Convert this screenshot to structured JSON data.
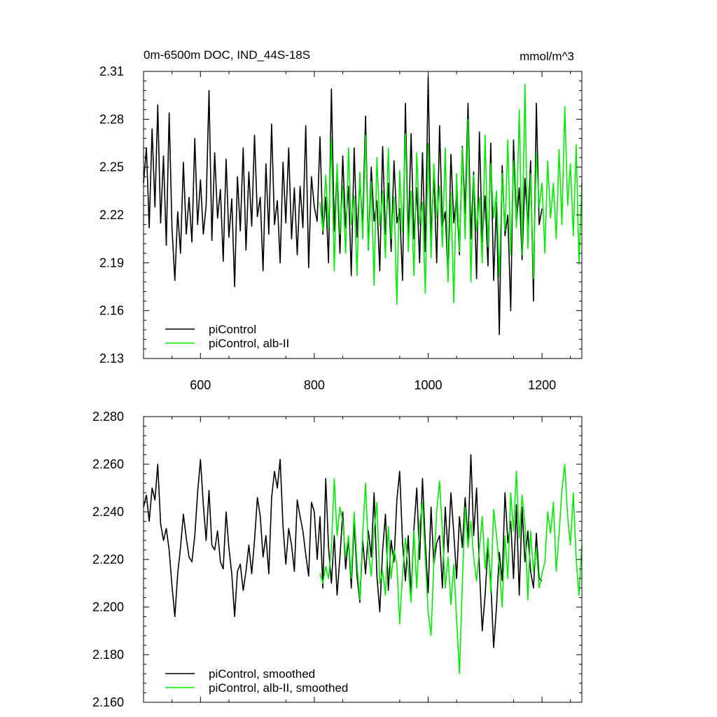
{
  "chart_data": [
    {
      "type": "line",
      "title": "0m-6500m DOC, IND_44S-18S",
      "units": "mmol/m^3",
      "xlim": [
        500,
        1270
      ],
      "ylim": [
        2.13,
        2.31
      ],
      "x_ticks": [
        600,
        800,
        1000,
        1200
      ],
      "x_tick_labels": [
        "600",
        "800",
        "1000",
        "1200"
      ],
      "y_ticks": [
        2.13,
        2.16,
        2.19,
        2.22,
        2.25,
        2.28,
        2.31
      ],
      "y_tick_labels": [
        "2.13",
        "2.16",
        "2.19",
        "2.22",
        "2.25",
        "2.28",
        "2.31"
      ],
      "legend_position": "bottom-left",
      "series": [
        {
          "name": "piControl",
          "color": "#000000",
          "x": [
            500,
            505,
            510,
            515,
            520,
            525,
            530,
            535,
            540,
            545,
            550,
            555,
            560,
            565,
            570,
            575,
            580,
            585,
            590,
            595,
            600,
            605,
            610,
            615,
            620,
            625,
            630,
            635,
            640,
            645,
            650,
            655,
            660,
            665,
            670,
            675,
            680,
            685,
            690,
            695,
            700,
            705,
            710,
            715,
            720,
            725,
            730,
            735,
            740,
            745,
            750,
            755,
            760,
            765,
            770,
            775,
            780,
            785,
            790,
            795,
            800,
            805,
            810,
            815,
            820,
            825,
            830,
            835,
            840,
            845,
            850,
            855,
            860,
            865,
            870,
            875,
            880,
            885,
            890,
            895,
            900,
            905,
            910,
            915,
            920,
            925,
            930,
            935,
            940,
            945,
            950,
            955,
            960,
            965,
            970,
            975,
            980,
            985,
            990,
            995,
            1000,
            1005,
            1010,
            1015,
            1020,
            1025,
            1030,
            1035,
            1040,
            1045,
            1050,
            1055,
            1060,
            1065,
            1070,
            1075,
            1080,
            1085,
            1090,
            1095,
            1100,
            1105,
            1110,
            1115,
            1120,
            1125,
            1130,
            1135,
            1140,
            1145,
            1150,
            1155,
            1160,
            1165,
            1170,
            1175,
            1180,
            1185,
            1190,
            1195,
            1200
          ],
          "y": [
            2.24,
            2.262,
            2.212,
            2.274,
            2.225,
            2.289,
            2.215,
            2.257,
            2.201,
            2.284,
            2.212,
            2.179,
            2.222,
            2.196,
            2.253,
            2.208,
            2.231,
            2.203,
            2.268,
            2.214,
            2.242,
            2.208,
            2.226,
            2.298,
            2.204,
            2.259,
            2.218,
            2.236,
            2.191,
            2.255,
            2.206,
            2.23,
            2.175,
            2.244,
            2.21,
            2.262,
            2.198,
            2.247,
            2.213,
            2.27,
            2.219,
            2.231,
            2.185,
            2.252,
            2.208,
            2.277,
            2.214,
            2.229,
            2.19,
            2.253,
            2.215,
            2.262,
            2.205,
            2.237,
            2.195,
            2.238,
            2.212,
            2.276,
            2.187,
            2.244,
            2.225,
            2.216,
            2.269,
            2.208,
            2.231,
            2.19,
            2.299,
            2.21,
            2.248,
            2.196,
            2.257,
            2.212,
            2.238,
            2.182,
            2.262,
            2.206,
            2.242,
            2.214,
            2.282,
            2.198,
            2.25,
            2.216,
            2.229,
            2.185,
            2.263,
            2.208,
            2.24,
            2.197,
            2.254,
            2.215,
            2.224,
            2.179,
            2.29,
            2.202,
            2.271,
            2.205,
            2.237,
            2.19,
            2.259,
            2.197,
            2.307,
            2.205,
            2.245,
            2.19,
            2.276,
            2.213,
            2.222,
            2.181,
            2.258,
            2.215,
            2.233,
            2.195,
            2.263,
            2.221,
            2.29,
            2.205,
            2.247,
            2.18,
            2.272,
            2.203,
            2.232,
            2.188,
            2.265,
            2.179,
            2.228,
            2.145,
            2.251,
            2.207,
            2.22,
            2.16,
            2.267,
            2.215,
            2.237,
            2.192,
            2.243,
            2.214,
            2.254,
            2.166,
            2.29,
            2.214,
            2.224
          ]
        },
        {
          "name": "piControl, alb-II",
          "color": "#00ee00",
          "x": [
            810,
            815,
            820,
            825,
            830,
            835,
            840,
            845,
            850,
            855,
            860,
            865,
            870,
            875,
            880,
            885,
            890,
            895,
            900,
            905,
            910,
            915,
            920,
            925,
            930,
            935,
            940,
            945,
            950,
            955,
            960,
            965,
            970,
            975,
            980,
            985,
            990,
            995,
            1000,
            1005,
            1010,
            1015,
            1020,
            1025,
            1030,
            1035,
            1040,
            1045,
            1050,
            1055,
            1060,
            1065,
            1070,
            1075,
            1080,
            1085,
            1090,
            1095,
            1100,
            1105,
            1110,
            1115,
            1120,
            1125,
            1130,
            1135,
            1140,
            1145,
            1150,
            1155,
            1160,
            1165,
            1170,
            1175,
            1180,
            1185,
            1190,
            1195,
            1200,
            1205,
            1210,
            1215,
            1220,
            1225,
            1230,
            1235,
            1240,
            1245,
            1250,
            1255,
            1260,
            1265,
            1270
          ],
          "y": [
            2.228,
            2.21,
            2.245,
            2.212,
            2.268,
            2.185,
            2.252,
            2.208,
            2.238,
            2.196,
            2.262,
            2.214,
            2.232,
            2.182,
            2.247,
            2.205,
            2.27,
            2.198,
            2.241,
            2.176,
            2.256,
            2.213,
            2.235,
            2.193,
            2.262,
            2.205,
            2.231,
            2.164,
            2.248,
            2.209,
            2.271,
            2.197,
            2.235,
            2.182,
            2.259,
            2.214,
            2.228,
            2.171,
            2.265,
            2.193,
            2.252,
            2.218,
            2.238,
            2.2,
            2.262,
            2.178,
            2.234,
            2.165,
            2.246,
            2.197,
            2.262,
            2.205,
            2.28,
            2.178,
            2.245,
            2.21,
            2.231,
            2.19,
            2.27,
            2.2,
            2.252,
            2.218,
            2.235,
            2.181,
            2.246,
            2.21,
            2.267,
            2.195,
            2.254,
            2.212,
            2.286,
            2.195,
            2.302,
            2.199,
            2.246,
            2.18,
            2.259,
            2.225,
            2.24,
            2.196,
            2.254,
            2.218,
            2.24,
            2.205,
            2.261,
            2.214,
            2.288,
            2.226,
            2.252,
            2.207,
            2.264,
            2.189,
            2.24
          ]
        }
      ]
    },
    {
      "type": "line",
      "xlim": [
        500,
        1270
      ],
      "ylim": [
        2.16,
        2.28
      ],
      "x_ticks": [
        600,
        800,
        1000,
        1200
      ],
      "y_ticks": [
        2.16,
        2.18,
        2.2,
        2.22,
        2.24,
        2.26,
        2.28
      ],
      "y_tick_labels": [
        "2.160",
        "2.180",
        "2.200",
        "2.220",
        "2.240",
        "2.260",
        "2.280"
      ],
      "legend_position": "bottom-left",
      "series": [
        {
          "name": "piControl, smoothed",
          "color": "#000000",
          "x": [
            500,
            505,
            510,
            515,
            520,
            525,
            530,
            535,
            540,
            545,
            550,
            555,
            560,
            565,
            570,
            575,
            580,
            585,
            590,
            595,
            600,
            605,
            610,
            615,
            620,
            625,
            630,
            635,
            640,
            645,
            650,
            655,
            660,
            665,
            670,
            675,
            680,
            685,
            690,
            695,
            700,
            705,
            710,
            715,
            720,
            725,
            730,
            735,
            740,
            745,
            750,
            755,
            760,
            765,
            770,
            775,
            780,
            785,
            790,
            795,
            800,
            805,
            810,
            815,
            820,
            825,
            830,
            835,
            840,
            845,
            850,
            855,
            860,
            865,
            870,
            875,
            880,
            885,
            890,
            895,
            900,
            905,
            910,
            915,
            920,
            925,
            930,
            935,
            940,
            945,
            950,
            955,
            960,
            965,
            970,
            975,
            980,
            985,
            990,
            995,
            1000,
            1005,
            1010,
            1015,
            1020,
            1025,
            1030,
            1035,
            1040,
            1045,
            1050,
            1055,
            1060,
            1065,
            1070,
            1075,
            1080,
            1085,
            1090,
            1095,
            1100,
            1105,
            1110,
            1115,
            1120,
            1125,
            1130,
            1135,
            1140,
            1145,
            1150,
            1155,
            1160,
            1165,
            1170,
            1175,
            1180,
            1185,
            1190,
            1195,
            1200
          ],
          "y": [
            2.242,
            2.247,
            2.236,
            2.25,
            2.245,
            2.26,
            2.235,
            2.228,
            2.233,
            2.224,
            2.209,
            2.196,
            2.214,
            2.225,
            2.239,
            2.229,
            2.221,
            2.219,
            2.23,
            2.248,
            2.262,
            2.243,
            2.228,
            2.249,
            2.226,
            2.224,
            2.232,
            2.219,
            2.216,
            2.24,
            2.225,
            2.214,
            2.196,
            2.215,
            2.218,
            2.207,
            2.215,
            2.226,
            2.214,
            2.228,
            2.246,
            2.238,
            2.221,
            2.23,
            2.214,
            2.246,
            2.257,
            2.25,
            2.262,
            2.234,
            2.218,
            2.233,
            2.226,
            2.215,
            2.245,
            2.238,
            2.232,
            2.222,
            2.213,
            2.244,
            2.24,
            2.22,
            2.238,
            2.208,
            2.254,
            2.225,
            2.21,
            2.23,
            2.205,
            2.221,
            2.24,
            2.216,
            2.229,
            2.208,
            2.236,
            2.213,
            2.202,
            2.228,
            2.214,
            2.232,
            2.221,
            2.248,
            2.213,
            2.198,
            2.224,
            2.239,
            2.207,
            2.228,
            2.219,
            2.245,
            2.257,
            2.227,
            2.211,
            2.23,
            2.205,
            2.233,
            2.25,
            2.22,
            2.254,
            2.227,
            2.206,
            2.242,
            2.218,
            2.227,
            2.23,
            2.208,
            2.242,
            2.223,
            2.248,
            2.231,
            2.212,
            2.238,
            2.225,
            2.246,
            2.228,
            2.264,
            2.23,
            2.25,
            2.216,
            2.19,
            2.205,
            2.225,
            2.211,
            2.183,
            2.2,
            2.223,
            2.211,
            2.248,
            2.227,
            2.236,
            2.212,
            2.243,
            2.205,
            2.242,
            2.219,
            2.232,
            2.215,
            2.208,
            2.231,
            2.212,
            2.211
          ]
        },
        {
          "name": "piControl, alb-II, smoothed",
          "color": "#00ee00",
          "x": [
            810,
            815,
            820,
            825,
            830,
            835,
            840,
            845,
            850,
            855,
            860,
            865,
            870,
            875,
            880,
            885,
            890,
            895,
            900,
            905,
            910,
            915,
            920,
            925,
            930,
            935,
            940,
            945,
            950,
            955,
            960,
            965,
            970,
            975,
            980,
            985,
            990,
            995,
            1000,
            1005,
            1010,
            1015,
            1020,
            1025,
            1030,
            1035,
            1040,
            1045,
            1050,
            1055,
            1060,
            1065,
            1070,
            1075,
            1080,
            1085,
            1090,
            1095,
            1100,
            1105,
            1110,
            1115,
            1120,
            1125,
            1130,
            1135,
            1140,
            1145,
            1150,
            1155,
            1160,
            1165,
            1170,
            1175,
            1180,
            1185,
            1190,
            1195,
            1200,
            1205,
            1210,
            1215,
            1220,
            1225,
            1230,
            1235,
            1240,
            1245,
            1250,
            1255,
            1260,
            1265,
            1270
          ],
          "y": [
            2.214,
            2.21,
            2.217,
            2.212,
            2.225,
            2.254,
            2.23,
            2.242,
            2.236,
            2.221,
            2.23,
            2.212,
            2.24,
            2.218,
            2.203,
            2.231,
            2.252,
            2.223,
            2.213,
            2.232,
            2.244,
            2.21,
            2.215,
            2.205,
            2.234,
            2.212,
            2.224,
            2.218,
            2.193,
            2.214,
            2.229,
            2.216,
            2.202,
            2.232,
            2.208,
            2.235,
            2.244,
            2.22,
            2.198,
            2.188,
            2.218,
            2.24,
            2.253,
            2.232,
            2.208,
            2.221,
            2.201,
            2.218,
            2.195,
            2.172,
            2.21,
            2.242,
            2.225,
            2.236,
            2.221,
            2.211,
            2.224,
            2.238,
            2.216,
            2.229,
            2.206,
            2.241,
            2.23,
            2.217,
            2.2,
            2.23,
            2.212,
            2.248,
            2.232,
            2.257,
            2.229,
            2.247,
            2.235,
            2.203,
            2.232,
            2.215,
            2.225,
            2.208,
            2.214,
            2.219,
            2.24,
            2.231,
            2.244,
            2.215,
            2.231,
            2.249,
            2.26,
            2.238,
            2.226,
            2.248,
            2.22,
            2.205,
            2.226
          ]
        }
      ]
    }
  ]
}
